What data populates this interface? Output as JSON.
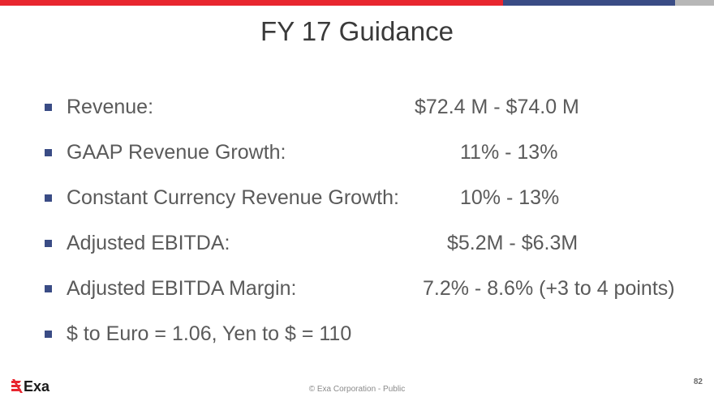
{
  "colors": {
    "red": "#e8262f",
    "blue": "#3a4c85",
    "gray": "#b7b7b7",
    "bullet": "#3a4c85",
    "logo": "#e8262f"
  },
  "slide": {
    "title": "FY 17 Guidance",
    "items": [
      {
        "label": "Revenue:",
        "value": "$72.4 M - $74.0 M"
      },
      {
        "label": "GAAP Revenue Growth:",
        "value": "11% - 13%"
      },
      {
        "label": "Constant Currency Revenue Growth:",
        "value": "10% - 13%"
      },
      {
        "label": "Adjusted EBITDA:",
        "value": "$5.2M - $6.3M"
      },
      {
        "label": "Adjusted EBITDA Margin:",
        "value": "7.2% - 8.6% (+3 to 4 points)"
      },
      {
        "label": "$ to Euro = 1.06, Yen to $ = 110"
      }
    ]
  },
  "footer": {
    "logo_text": "Exa",
    "copyright": "© Exa Corporation - Public",
    "page_number": "82"
  }
}
